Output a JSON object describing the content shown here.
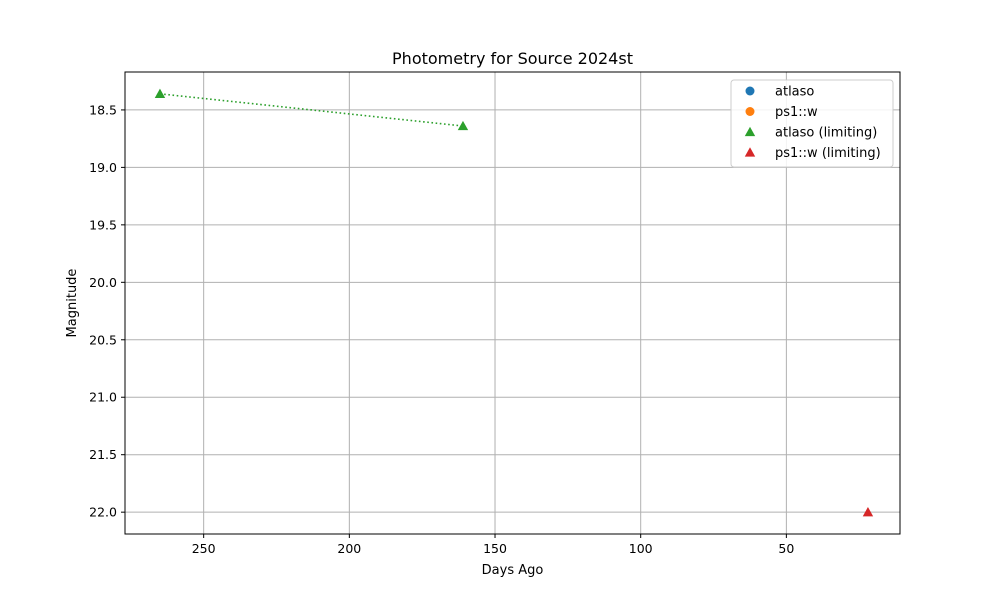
{
  "chart_data": {
    "type": "scatter",
    "title": "Photometry for Source 2024st",
    "xlabel": "Days Ago",
    "ylabel": "Magnitude",
    "xlim": [
      277,
      11
    ],
    "ylim": [
      18.17,
      22.19
    ],
    "x_inverted": true,
    "y_inverted": true,
    "grid": true,
    "legend_position": "top-right",
    "x_ticks": [
      250,
      200,
      150,
      100,
      50
    ],
    "y_ticks": [
      18.5,
      19.0,
      19.5,
      20.0,
      20.5,
      21.0,
      21.5,
      22.0
    ],
    "x_tick_labels": [
      "250",
      "200",
      "150",
      "100",
      "50"
    ],
    "y_tick_labels": [
      "18.5",
      "19.0",
      "19.5",
      "20.0",
      "20.5",
      "21.0",
      "21.5",
      "22.0"
    ],
    "series": [
      {
        "name": "atlaso",
        "marker": "circle",
        "color": "#1f77b4",
        "points": []
      },
      {
        "name": "ps1::w",
        "marker": "circle",
        "color": "#ff7f0e",
        "points": []
      },
      {
        "name": "atlaso (limiting)",
        "marker": "triangle",
        "color": "#2ca02c",
        "connect": "dotted",
        "points": [
          {
            "x": 265,
            "y": 18.36
          },
          {
            "x": 161,
            "y": 18.64
          }
        ]
      },
      {
        "name": "ps1::w (limiting)",
        "marker": "triangle",
        "color": "#d62728",
        "points": [
          {
            "x": 22,
            "y": 22.0
          }
        ]
      }
    ]
  }
}
